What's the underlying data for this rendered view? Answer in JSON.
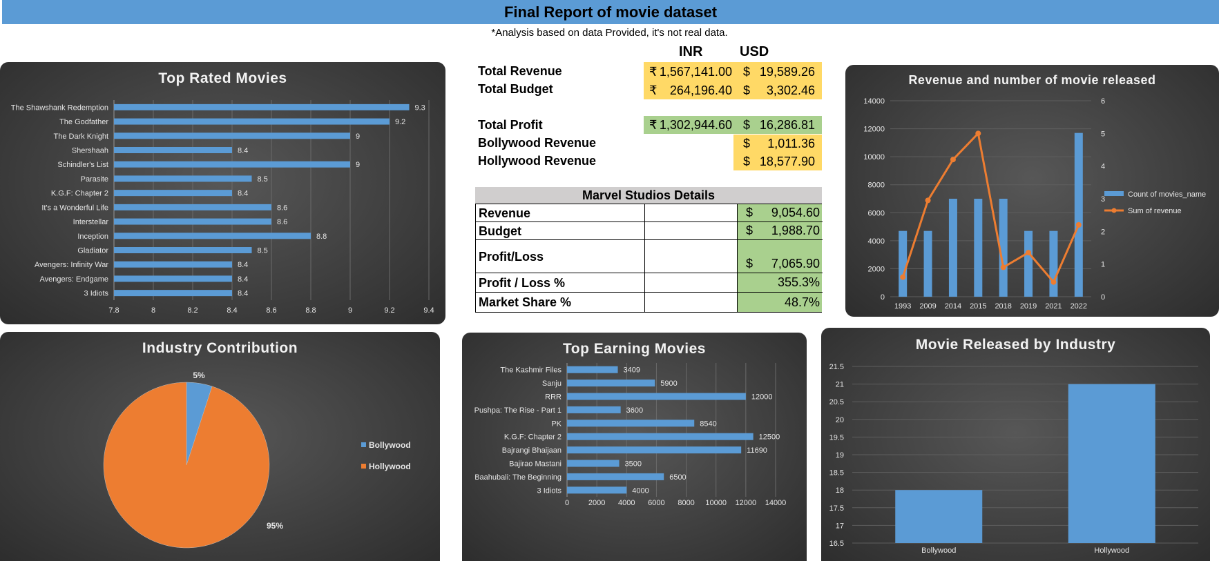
{
  "header": {
    "title": "Final Report of movie dataset",
    "note": "*Analysis based on data Provided, it's not real data."
  },
  "summary": {
    "col_inr": "INR",
    "col_usd": "USD",
    "rows": [
      {
        "label": "Total Revenue",
        "inr_sym": "₹",
        "inr": "1,567,141.00",
        "usd_sym": "$",
        "usd": "19,589.26"
      },
      {
        "label": "Total Budget",
        "inr_sym": "₹",
        "inr": "264,196.40",
        "usd_sym": "$",
        "usd": "3,302.46"
      },
      {
        "label": "Total Profit",
        "inr_sym": "₹",
        "inr": "1,302,944.60",
        "usd_sym": "$",
        "usd": "16,286.81"
      },
      {
        "label": "Bollywood Revenue",
        "usd_sym": "$",
        "usd": "1,011.36"
      },
      {
        "label": "Hollywood Revenue",
        "usd_sym": "$",
        "usd": "18,577.90"
      }
    ]
  },
  "marvel": {
    "title": "Marvel Studios Details",
    "rows": [
      {
        "label": "Revenue",
        "sym": "$",
        "value": "9,054.60"
      },
      {
        "label": "Budget",
        "sym": "$",
        "value": "1,988.70"
      },
      {
        "label": "Profit/Loss",
        "sym": "$",
        "value": "7,065.90"
      },
      {
        "label": "Profit / Loss %",
        "sym": "",
        "value": "355.3%"
      },
      {
        "label": "Market Share %",
        "sym": "",
        "value": "48.7%"
      }
    ]
  },
  "colors": {
    "bar": "#5b9bd5",
    "line": "#ed7d31",
    "yellow": "#ffd966",
    "green": "#a9d08e"
  },
  "chart_data": [
    {
      "id": "top_rated",
      "type": "bar",
      "orientation": "horizontal",
      "title": "Top Rated Movies",
      "categories": [
        "The Shawshank Redemption",
        "The Godfather",
        "The Dark Knight",
        "Shershaah",
        "Schindler's List",
        "Parasite",
        "K.G.F: Chapter 2",
        "It's a Wonderful Life",
        "Interstellar",
        "Inception",
        "Gladiator",
        "Avengers: Infinity War",
        "Avengers: Endgame",
        "3 Idiots"
      ],
      "values": [
        9.3,
        9.2,
        9,
        8.4,
        9,
        8.5,
        8.4,
        8.6,
        8.6,
        8.8,
        8.5,
        8.4,
        8.4,
        8.4
      ],
      "labels": [
        "9.3",
        "9.2",
        "9",
        "8.4",
        "9",
        "8.5",
        "8.4",
        "8.6",
        "8.6",
        "8.8",
        "8.5",
        "8.4",
        "8.4",
        "8.4"
      ],
      "xlim": [
        7.8,
        9.4
      ],
      "xticks": [
        "7.8",
        "8",
        "8.2",
        "8.4",
        "8.6",
        "8.8",
        "9",
        "9.2",
        "9.4"
      ],
      "grid": true
    },
    {
      "id": "revenue_releases",
      "type": "bar",
      "title": "Revenue and number of movie released",
      "categories": [
        "1993",
        "2009",
        "2014",
        "2015",
        "2018",
        "2019",
        "2021",
        "2022"
      ],
      "series": [
        {
          "name": "Count of movies_name",
          "type": "bar",
          "axis": "left",
          "values": [
            4700,
            4700,
            7000,
            7000,
            7000,
            4700,
            4700,
            11700
          ]
        },
        {
          "name": "Sum of revenue",
          "type": "line",
          "axis": "right",
          "values": [
            0.6,
            2.95,
            4.2,
            5,
            0.9,
            1.35,
            0.45,
            2.2
          ]
        }
      ],
      "ylim": [
        0,
        14000
      ],
      "yticks": [
        "0",
        "2000",
        "4000",
        "6000",
        "8000",
        "10000",
        "12000",
        "14000"
      ],
      "y2lim": [
        0,
        6
      ],
      "y2ticks": [
        "0",
        "1",
        "2",
        "3",
        "4",
        "5",
        "6"
      ],
      "legend": "right"
    },
    {
      "id": "industry_contribution",
      "type": "pie",
      "title": "Industry Contribution",
      "categories": [
        "Bollywood",
        "Hollywood"
      ],
      "values": [
        5,
        95
      ],
      "labels": [
        "5%",
        "95%"
      ],
      "colors": [
        "#5b9bd5",
        "#ed7d31"
      ],
      "legend": "right"
    },
    {
      "id": "top_earning",
      "type": "bar",
      "orientation": "horizontal",
      "title": "Top Earning Movies",
      "categories": [
        "The Kashmir Files",
        "Sanju",
        "RRR",
        "Pushpa: The Rise - Part 1",
        "PK",
        "K.G.F: Chapter 2",
        "Bajrangi Bhaijaan",
        "Bajirao Mastani",
        "Baahubali: The Beginning",
        "3 Idiots"
      ],
      "values": [
        3409,
        5900,
        12000,
        3600,
        8540,
        12500,
        11690,
        3500,
        6500,
        4000
      ],
      "labels": [
        "3409",
        "5900",
        "12000",
        "3600",
        "8540",
        "12500",
        "11690",
        "3500",
        "6500",
        "4000"
      ],
      "xlim": [
        0,
        14000
      ],
      "xticks": [
        "0",
        "2000",
        "4000",
        "6000",
        "8000",
        "10000",
        "12000",
        "14000"
      ],
      "grid": true
    },
    {
      "id": "released_by_industry",
      "type": "bar",
      "title": "Movie Released by Industry",
      "categories": [
        "Bollywood",
        "Hollywood"
      ],
      "values": [
        18,
        21
      ],
      "ylim": [
        16.5,
        21.5
      ],
      "yticks": [
        "16.5",
        "17",
        "17.5",
        "18",
        "18.5",
        "19",
        "19.5",
        "20",
        "20.5",
        "21",
        "21.5"
      ],
      "grid": true
    }
  ]
}
